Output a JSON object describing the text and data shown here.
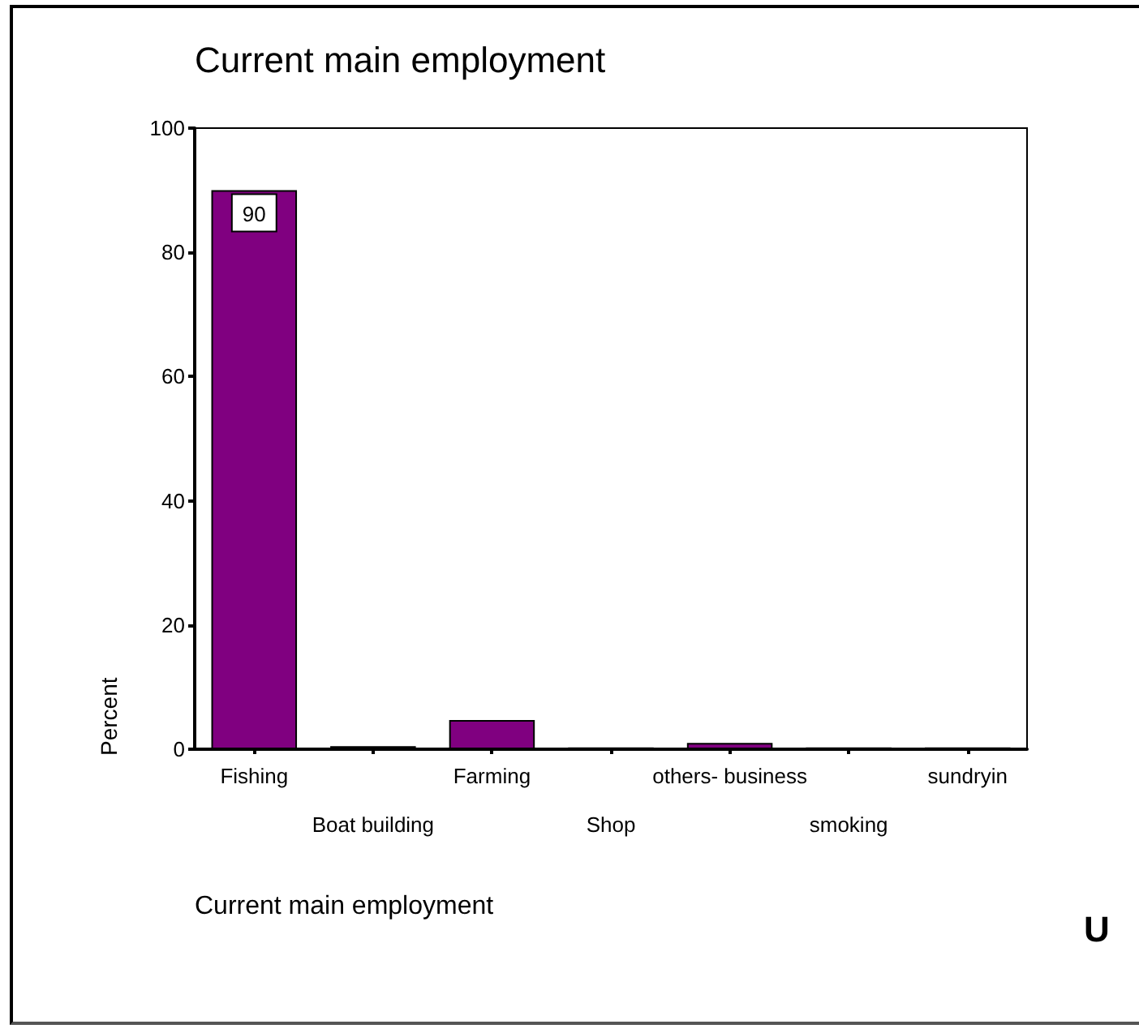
{
  "chart_data": {
    "type": "bar",
    "title": "Current main employment",
    "xlabel": "Current main employment",
    "ylabel": "Percent",
    "annotations": [
      "U"
    ],
    "categories": [
      "Fishing",
      "Boat building",
      "Farming",
      "Shop",
      "others- business",
      "smoking",
      "sundryin"
    ],
    "values": [
      90,
      0.5,
      4.7,
      0.3,
      1,
      0.3,
      0.3
    ],
    "color": "#800080",
    "value_labels": [
      "90",
      null,
      null,
      null,
      null,
      null,
      null
    ],
    "ylim": [
      0,
      100
    ],
    "yticks": [
      0,
      20,
      40,
      60,
      80,
      100
    ],
    "grid": false
  }
}
